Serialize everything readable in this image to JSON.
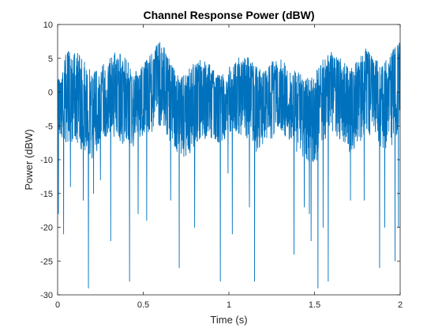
{
  "chart_data": {
    "type": "line",
    "title": "Channel Response Power (dBW)",
    "xlabel": "Time (s)",
    "ylabel": "Power (dBW)",
    "xlim": [
      0,
      2
    ],
    "ylim": [
      -30,
      10
    ],
    "xticks": [
      0,
      0.5,
      1,
      1.5,
      2
    ],
    "xtick_labels": [
      "0",
      "0.5",
      "1",
      "1.5",
      "2"
    ],
    "yticks": [
      10,
      5,
      0,
      -5,
      -10,
      -15,
      -20,
      -25,
      -30
    ],
    "ytick_labels": [
      "10",
      "5",
      "0",
      "-5",
      "-10",
      "-15",
      "-20",
      "-25",
      "-30"
    ],
    "grid": false,
    "series": [
      {
        "color": "#0072BD",
        "envelope": {
          "x": [
            0,
            0.05,
            0.1,
            0.15,
            0.2,
            0.25,
            0.3,
            0.35,
            0.4,
            0.45,
            0.5,
            0.55,
            0.6,
            0.65,
            0.7,
            0.75,
            0.8,
            0.85,
            0.9,
            0.95,
            1.0,
            1.05,
            1.1,
            1.15,
            1.2,
            1.25,
            1.3,
            1.35,
            1.4,
            1.45,
            1.5,
            1.55,
            1.6,
            1.65,
            1.7,
            1.75,
            1.8,
            1.85,
            1.9,
            1.95,
            2.0
          ],
          "upper": [
            2,
            6,
            6.5,
            5,
            3,
            4,
            5.5,
            6,
            5,
            3.5,
            4,
            6,
            8,
            5,
            2.5,
            3,
            4.5,
            5,
            4,
            2.5,
            4,
            5,
            5.5,
            4,
            3,
            4.5,
            5,
            4,
            3,
            2,
            3,
            5,
            6,
            5,
            4,
            4.5,
            6.5,
            5,
            4,
            6,
            7.5
          ],
          "lower": [
            -6,
            -8,
            -7,
            -9,
            -10,
            -8,
            -6,
            -7,
            -9,
            -8,
            -7,
            -6,
            -5,
            -7,
            -9,
            -10,
            -8,
            -7,
            -7,
            -8,
            -6,
            -6,
            -8,
            -9,
            -8,
            -7,
            -6,
            -7,
            -9,
            -10,
            -11,
            -8,
            -6,
            -7,
            -9,
            -8,
            -6,
            -7,
            -9,
            -8,
            -5
          ],
          "center": [
            -1,
            0,
            1,
            -1,
            -3,
            -1,
            0,
            1,
            -1,
            -2,
            -1,
            1,
            2.5,
            0,
            -3,
            -3,
            -1,
            0,
            -1,
            -2,
            -1,
            0,
            0.5,
            -1,
            -2,
            -1,
            0,
            -1,
            -3,
            -4,
            -3,
            -1,
            1,
            0,
            -2,
            -1,
            1,
            0,
            -2,
            0,
            2
          ],
          "samples": 2000,
          "seed": 7
        },
        "dips": [
          {
            "x": 0.005,
            "y": -18
          },
          {
            "x": 0.035,
            "y": -21
          },
          {
            "x": 0.18,
            "y": -29
          },
          {
            "x": 0.15,
            "y": -16
          },
          {
            "x": 0.31,
            "y": -22
          },
          {
            "x": 0.21,
            "y": -15
          },
          {
            "x": 0.42,
            "y": -28
          },
          {
            "x": 0.47,
            "y": -18
          },
          {
            "x": 0.52,
            "y": -19
          },
          {
            "x": 0.71,
            "y": -26
          },
          {
            "x": 0.66,
            "y": -16
          },
          {
            "x": 0.8,
            "y": -20
          },
          {
            "x": 0.95,
            "y": -28
          },
          {
            "x": 1.02,
            "y": -21
          },
          {
            "x": 1.15,
            "y": -28
          },
          {
            "x": 1.12,
            "y": -17
          },
          {
            "x": 1.38,
            "y": -24
          },
          {
            "x": 1.44,
            "y": -17
          },
          {
            "x": 1.52,
            "y": -29
          },
          {
            "x": 1.48,
            "y": -22
          },
          {
            "x": 1.58,
            "y": -28
          },
          {
            "x": 1.55,
            "y": -20
          },
          {
            "x": 1.71,
            "y": -16
          },
          {
            "x": 1.79,
            "y": -16
          },
          {
            "x": 1.88,
            "y": -26
          },
          {
            "x": 1.91,
            "y": -20
          },
          {
            "x": 1.97,
            "y": -25
          },
          {
            "x": 1.99,
            "y": -20
          },
          {
            "x": 0.995,
            "y": -12
          },
          {
            "x": 1.47,
            "y": -18
          },
          {
            "x": 0.075,
            "y": -14
          },
          {
            "x": 0.25,
            "y": -13
          }
        ]
      }
    ]
  }
}
